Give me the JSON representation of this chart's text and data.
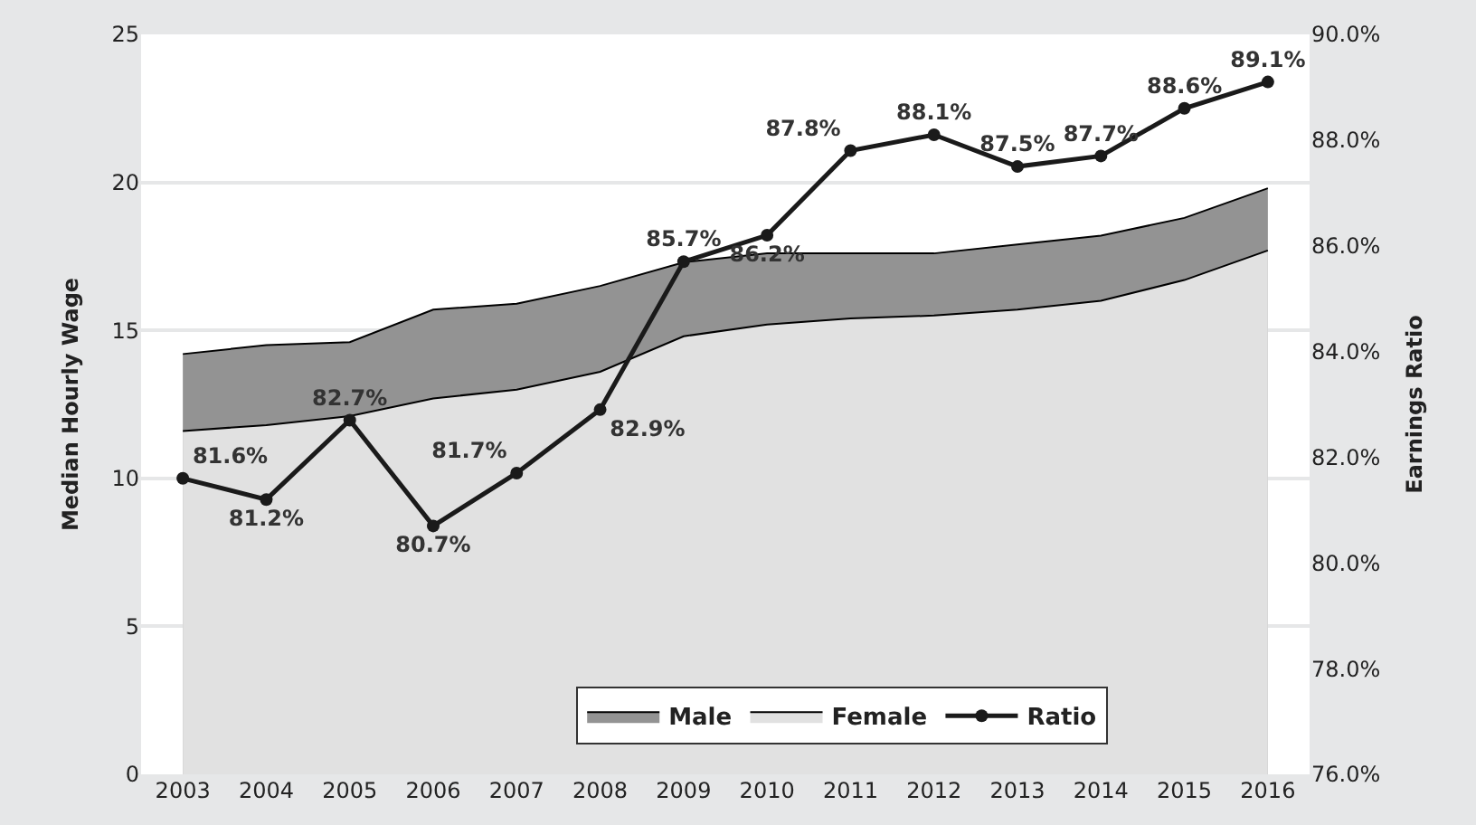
{
  "chart_data": {
    "type": "area",
    "ylabel": "Median Hourly Wage",
    "y2label": "Earnings Ratio",
    "categories": [
      "2003",
      "2004",
      "2005",
      "2006",
      "2007",
      "2008",
      "2009",
      "2010",
      "2011",
      "2012",
      "2013",
      "2014",
      "2015",
      "2016"
    ],
    "series": [
      {
        "name": "Male",
        "color": "#939393",
        "values": [
          14.2,
          14.5,
          14.6,
          15.7,
          15.9,
          16.5,
          17.3,
          17.6,
          17.6,
          17.6,
          17.9,
          18.2,
          18.8,
          19.8
        ]
      },
      {
        "name": "Female",
        "color": "#e1e1e1",
        "values": [
          11.6,
          11.8,
          12.1,
          12.7,
          13.0,
          13.6,
          14.8,
          15.2,
          15.4,
          15.5,
          15.7,
          16.0,
          16.7,
          17.7
        ]
      },
      {
        "name": "Ratio",
        "type": "line",
        "axis": "y2",
        "color": "#1a1a1a",
        "marker": "circle",
        "values": [
          81.6,
          81.2,
          82.7,
          80.7,
          81.7,
          82.9,
          85.7,
          86.2,
          87.8,
          88.1,
          87.5,
          87.7,
          88.6,
          89.1
        ],
        "value_labels": [
          "81.6%",
          "81.2%",
          "82.7%",
          "80.7%",
          "81.7%",
          "82.9%",
          "85.7%",
          "86.2%",
          "87.8%",
          "88.1%",
          "87.5%",
          "87.7%",
          "88.6%",
          "89.1%"
        ]
      }
    ],
    "ylim": [
      0,
      25
    ],
    "yticks": [
      0,
      5,
      10,
      15,
      20,
      25
    ],
    "y2lim": [
      76,
      90
    ],
    "y2ticks": [
      {
        "value": 76,
        "label": "76.0%"
      },
      {
        "value": 78,
        "label": "78.0%"
      },
      {
        "value": 80,
        "label": "80.0%"
      },
      {
        "value": 82,
        "label": "82.0%"
      },
      {
        "value": 84,
        "label": "84.0%"
      },
      {
        "value": 86,
        "label": "86.0%"
      },
      {
        "value": 88,
        "label": "88.0%"
      },
      {
        "value": 90,
        "label": "90.0%"
      }
    ],
    "grid": "y",
    "legend": "bottom"
  }
}
